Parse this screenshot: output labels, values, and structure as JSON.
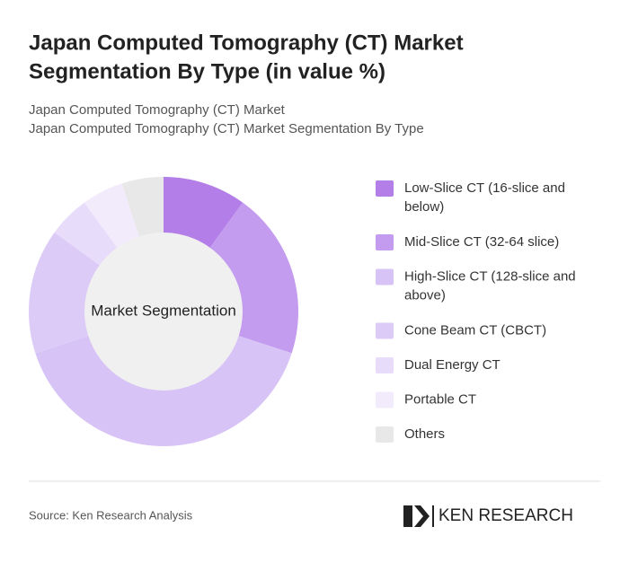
{
  "chart_data": {
    "type": "donut",
    "title": [
      "Japan Computed Tomography (CT) Market",
      "Segmentation By Type (in value %)"
    ],
    "subtitle": [
      "Japan Computed Tomography (CT) Market",
      "Japan Computed Tomography (CT) Market Segmentation By Type"
    ],
    "center_label": "Market Segmentation",
    "categories": [
      [
        "Low-Slice CT (16-slice and",
        "below)"
      ],
      [
        "Mid-Slice CT (32-64 slice)"
      ],
      [
        "High-Slice CT (128-slice and",
        "above)"
      ],
      [
        "Cone Beam CT (CBCT)"
      ],
      [
        "Dual Energy CT"
      ],
      [
        "Portable CT"
      ],
      [
        "Others"
      ]
    ],
    "values": [
      10,
      20,
      40,
      15,
      5,
      5,
      5
    ],
    "colors": [
      "#b47ee8",
      "#c39bef",
      "#d8c3f6",
      "#ddcbf7",
      "#e7dcfa",
      "#f1ebfc",
      "#e8e8e8"
    ]
  },
  "footer": {
    "source": "Source: Ken Research Analysis",
    "logo": "KEN RESEARCH"
  }
}
